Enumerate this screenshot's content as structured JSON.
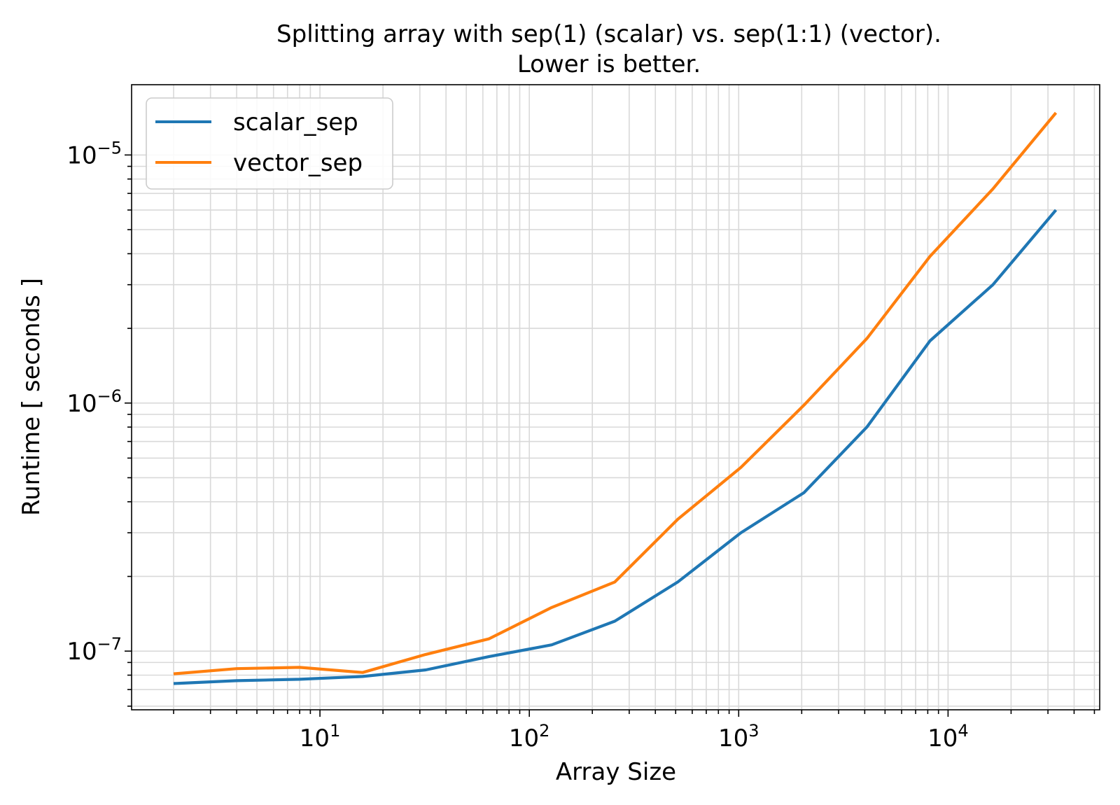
{
  "chart_data": {
    "type": "line",
    "title": [
      "Splitting array with sep(1) (scalar) vs. sep(1:1) (vector).",
      "Lower is better."
    ],
    "xlabel": "Array Size",
    "ylabel": "Runtime [ seconds ]",
    "xscale": "log",
    "yscale": "log",
    "xlim": [
      1.26,
      53000
    ],
    "ylim": [
      5.8e-08,
      1.92e-05
    ],
    "grid": true,
    "grid_minor": true,
    "legend_position": "top-left",
    "x_ticks": [
      {
        "base": "10",
        "exp": "1",
        "value": 10
      },
      {
        "base": "10",
        "exp": "2",
        "value": 100
      },
      {
        "base": "10",
        "exp": "3",
        "value": 1000
      },
      {
        "base": "10",
        "exp": "4",
        "value": 10000
      }
    ],
    "y_ticks": [
      {
        "base": "10",
        "exp": "−7",
        "value": 1e-07
      },
      {
        "base": "10",
        "exp": "−6",
        "value": 1e-06
      },
      {
        "base": "10",
        "exp": "−5",
        "value": 1e-05
      }
    ],
    "x": [
      2,
      4,
      8,
      16,
      32,
      64,
      128,
      256,
      512,
      1024,
      2048,
      4096,
      8192,
      16384,
      32768
    ],
    "series": [
      {
        "name": "scalar_sep",
        "color": "#1f77b4",
        "values": [
          7.4e-08,
          7.6e-08,
          7.7e-08,
          7.9e-08,
          8.4e-08,
          9.5e-08,
          1.06e-07,
          1.32e-07,
          1.9e-07,
          3e-07,
          4.35e-07,
          8e-07,
          1.78e-06,
          3e-06,
          6e-06
        ]
      },
      {
        "name": "vector_sep",
        "color": "#ff7f0e",
        "values": [
          8.1e-08,
          8.5e-08,
          8.6e-08,
          8.2e-08,
          9.7e-08,
          1.12e-07,
          1.5e-07,
          1.9e-07,
          3.4e-07,
          5.5e-07,
          9.8e-07,
          1.82e-06,
          3.9e-06,
          7.3e-06,
          1.48e-05
        ]
      }
    ]
  }
}
